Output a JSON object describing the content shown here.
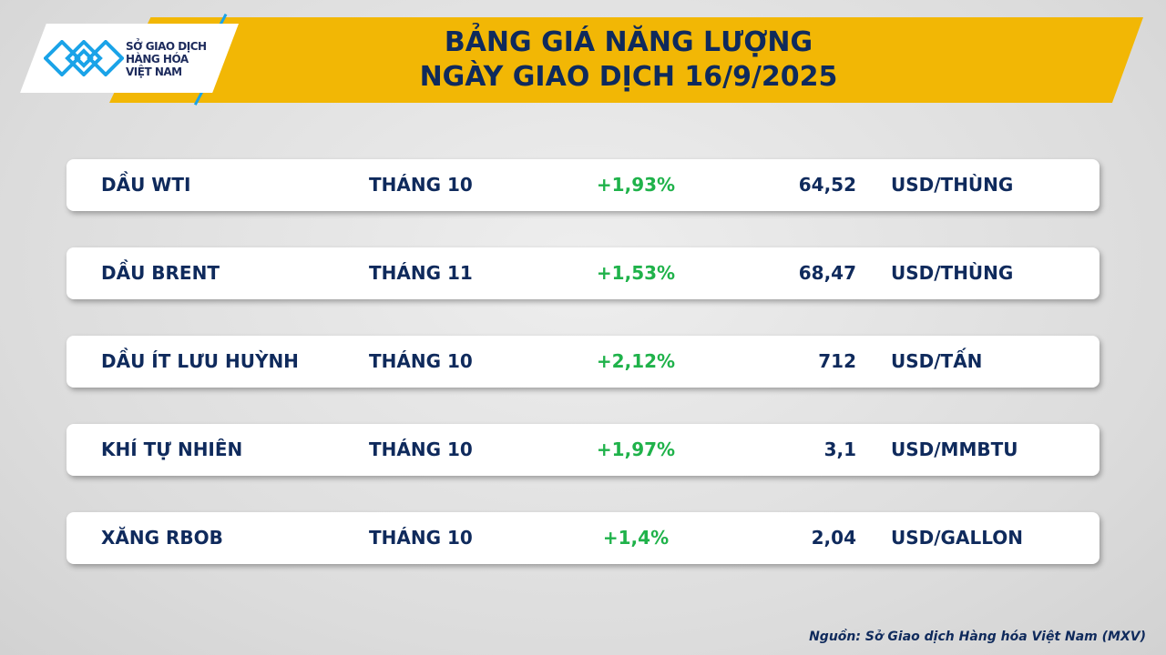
{
  "logo": {
    "text": [
      "SỞ GIAO DỊCH",
      "HÀNG HÓA",
      "VIỆT NAM"
    ],
    "brand_color": "#1aa3e8"
  },
  "header": {
    "line1": "BẢNG GIÁ NĂNG LƯỢNG",
    "line2": "NGÀY GIAO DỊCH 16/9/2025"
  },
  "rows": [
    {
      "name": "DẦU WTI",
      "month": "THÁNG 10",
      "change": "+1,93%",
      "price": "64,52",
      "unit": "USD/THÙNG"
    },
    {
      "name": "DẦU BRENT",
      "month": "THÁNG 11",
      "change": "+1,53%",
      "price": "68,47",
      "unit": "USD/THÙNG"
    },
    {
      "name": "DẦU ÍT LƯU HUỲNH",
      "month": "THÁNG 10",
      "change": "+2,12%",
      "price": "712",
      "unit": "USD/TẤN"
    },
    {
      "name": "KHÍ TỰ NHIÊN",
      "month": "THÁNG 10",
      "change": "+1,97%",
      "price": "3,1",
      "unit": "USD/MMBTU"
    },
    {
      "name": "XĂNG RBOB",
      "month": "THÁNG 10",
      "change": "+1,4%",
      "price": "2,04",
      "unit": "USD/GALLON"
    }
  ],
  "source": "Nguồn: Sở Giao dịch Hàng hóa Việt Nam (MXV)",
  "colors": {
    "banner": "#f2b705",
    "text": "#0f2a5c",
    "positive": "#1fb24a"
  }
}
